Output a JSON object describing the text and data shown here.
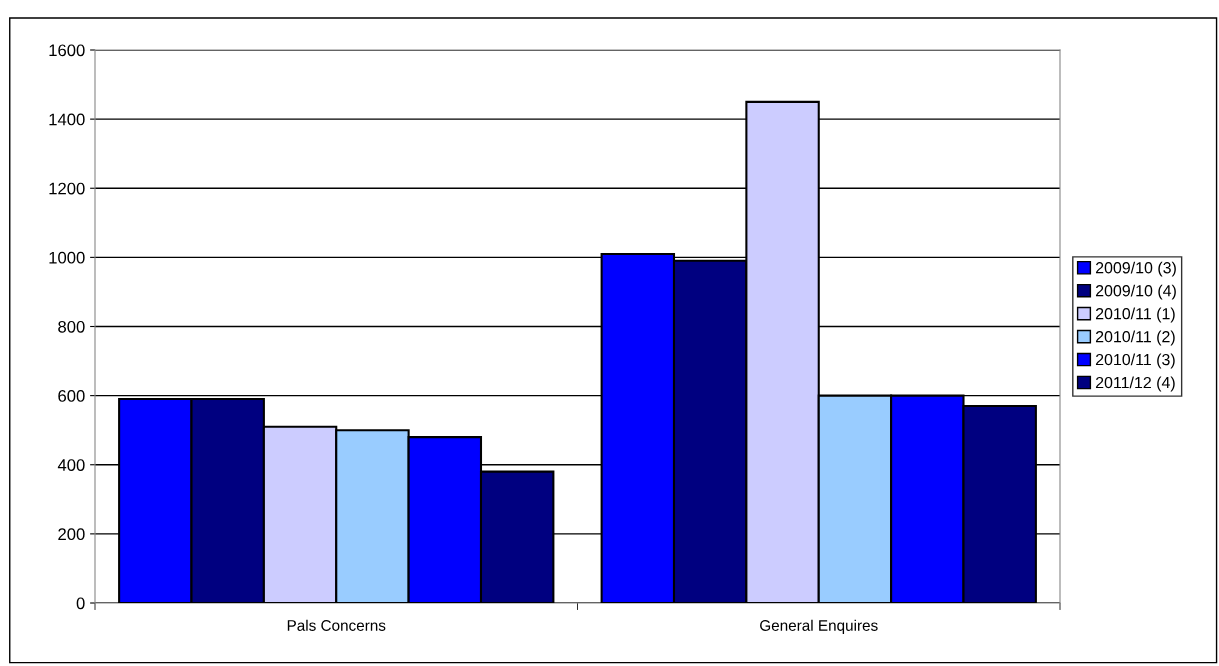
{
  "chart_data": {
    "type": "bar",
    "categories": [
      "Pals Concerns",
      "General Enquires"
    ],
    "series": [
      {
        "name": "2009/10 (3)",
        "color": "#0000ff",
        "values": [
          590,
          1010
        ]
      },
      {
        "name": "2009/10 (4)",
        "color": "#000080",
        "values": [
          590,
          990
        ]
      },
      {
        "name": "2010/11 (1)",
        "color": "#ccccff",
        "values": [
          510,
          1450
        ]
      },
      {
        "name": "2010/11 (2)",
        "color": "#99ccff",
        "values": [
          500,
          600
        ]
      },
      {
        "name": "2010/11 (3)",
        "color": "#0000ff",
        "values": [
          480,
          600
        ]
      },
      {
        "name": "2011/12 (4)",
        "color": "#000080",
        "values": [
          380,
          570
        ]
      }
    ],
    "ylim": [
      0,
      1600
    ],
    "yticks": [
      0,
      200,
      400,
      600,
      800,
      1000,
      1200,
      1400,
      1600
    ],
    "grid": "y",
    "legend": "right"
  }
}
